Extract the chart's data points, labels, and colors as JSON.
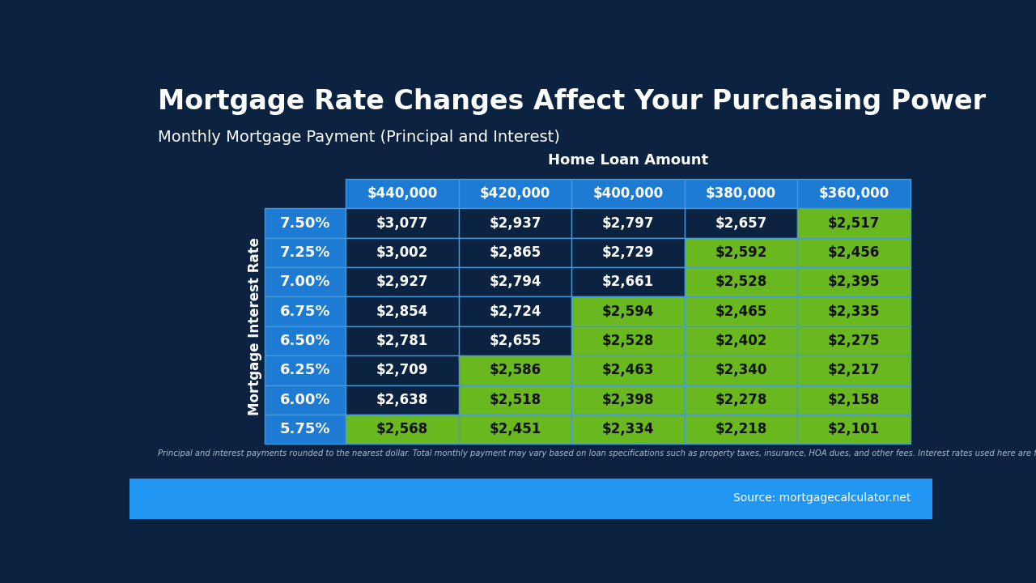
{
  "title": "Mortgage Rate Changes Affect Your Purchasing Power",
  "subtitle": "Monthly Mortgage Payment (Principal and Interest)",
  "col_header_label": "Home Loan Amount",
  "row_header_label": "Mortgage Interest Rate",
  "col_headers": [
    "$440,000",
    "$420,000",
    "$400,000",
    "$380,000",
    "$360,000"
  ],
  "row_headers": [
    "7.50%",
    "7.25%",
    "7.00%",
    "6.75%",
    "6.50%",
    "6.25%",
    "6.00%",
    "5.75%"
  ],
  "table_data": [
    [
      "$3,077",
      "$2,937",
      "$2,797",
      "$2,657",
      "$2,517"
    ],
    [
      "$3,002",
      "$2,865",
      "$2,729",
      "$2,592",
      "$2,456"
    ],
    [
      "$2,927",
      "$2,794",
      "$2,661",
      "$2,528",
      "$2,395"
    ],
    [
      "$2,854",
      "$2,724",
      "$2,594",
      "$2,465",
      "$2,335"
    ],
    [
      "$2,781",
      "$2,655",
      "$2,528",
      "$2,402",
      "$2,275"
    ],
    [
      "$2,709",
      "$2,586",
      "$2,463",
      "$2,340",
      "$2,217"
    ],
    [
      "$2,638",
      "$2,518",
      "$2,398",
      "$2,278",
      "$2,158"
    ],
    [
      "$2,568",
      "$2,451",
      "$2,334",
      "$2,218",
      "$2,101"
    ]
  ],
  "cell_colors": [
    [
      "dark",
      "dark",
      "dark",
      "dark",
      "green"
    ],
    [
      "dark",
      "dark",
      "dark",
      "green",
      "green"
    ],
    [
      "dark",
      "dark",
      "dark",
      "green",
      "green"
    ],
    [
      "dark",
      "dark",
      "green",
      "green",
      "green"
    ],
    [
      "dark",
      "dark",
      "green",
      "green",
      "green"
    ],
    [
      "dark",
      "green",
      "green",
      "green",
      "green"
    ],
    [
      "dark",
      "green",
      "green",
      "green",
      "green"
    ],
    [
      "green",
      "green",
      "green",
      "green",
      "green"
    ]
  ],
  "footnote": "Principal and interest payments rounded to the nearest dollar. Total monthly payment may vary based on loan specifications such as property taxes, insurance, HOA dues, and other fees. Interest rates used here are for marketing purposes only. Consult your licensed Mortgage Advisor for current rates.",
  "source": "Source: mortgagecalculator.net",
  "bg_color": "#0b2341",
  "header_bg_color": "#1d7bd4",
  "row_header_bg_color": "#1d7bd4",
  "dark_cell_bg": "#0b2341",
  "green_color": "#6ab820",
  "cell_text_white": "#ffffff",
  "cell_text_dark": "#111111",
  "title_color": "#ffffff",
  "subtitle_color": "#ffffff",
  "header_text_color": "#ffffff",
  "row_header_text_color": "#ffffff",
  "bottom_bar_color": "#2196f3",
  "table_border_color": "#4499dd"
}
